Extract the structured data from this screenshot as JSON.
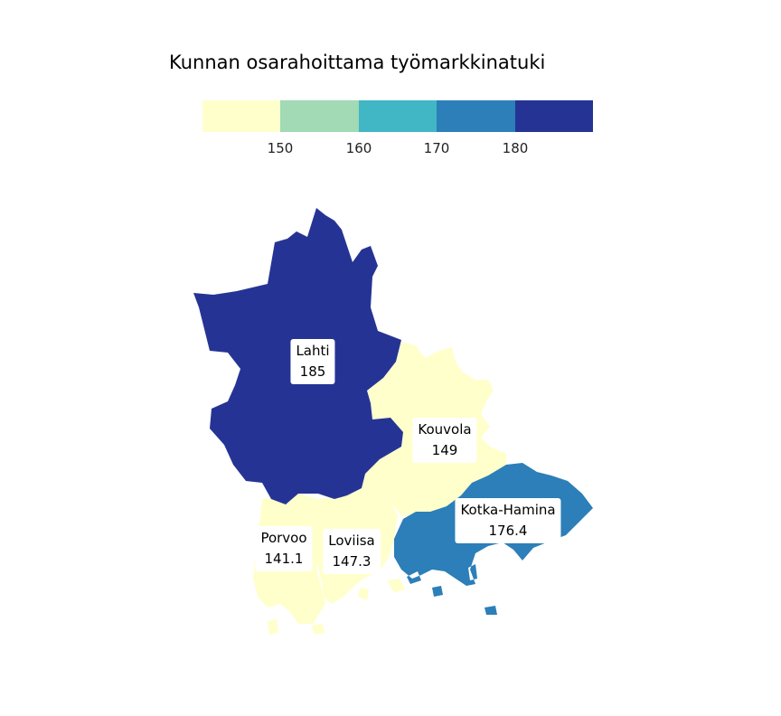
{
  "title": "Kunnan osarahoittama työmarkkinatuki",
  "legend": {
    "colors": [
      "#ffffcc",
      "#a1dab4",
      "#41b6c4",
      "#2c7fb8",
      "#253494"
    ],
    "ticks": [
      "150",
      "160",
      "170",
      "180"
    ]
  },
  "regions": [
    {
      "name": "Lahti",
      "value": "185",
      "color": "#253494"
    },
    {
      "name": "Kouvola",
      "value": "149",
      "color": "#ffffcc"
    },
    {
      "name": "Kotka-Hamina",
      "value": "176.4",
      "color": "#2c7fb8"
    },
    {
      "name": "Porvoo",
      "value": "141.1",
      "color": "#ffffcc"
    },
    {
      "name": "Loviisa",
      "value": "147.3",
      "color": "#ffffcc"
    }
  ]
}
